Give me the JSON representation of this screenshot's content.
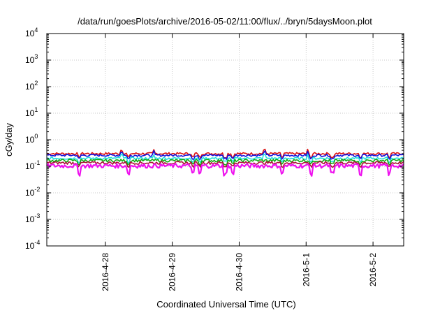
{
  "chart_data": {
    "type": "line",
    "title": "/data/run/goesPlots/archive/2016-05-02/11:00/flux/../bryn/5daysMoon.plot",
    "xlabel": "Coordinated Universal Time (UTC)",
    "ylabel": "cGy/day",
    "y_scale": "log",
    "ylim": [
      0.0001,
      10000
    ],
    "xlim": [
      "2016-04-27T03:00",
      "2016-05-02T11:00"
    ],
    "grid": true,
    "y_ticks": [
      {
        "base": "10",
        "exp": "4",
        "value": 10000
      },
      {
        "base": "10",
        "exp": "3",
        "value": 1000
      },
      {
        "base": "10",
        "exp": "2",
        "value": 100
      },
      {
        "base": "10",
        "exp": "1",
        "value": 10
      },
      {
        "base": "10",
        "exp": "0",
        "value": 1
      },
      {
        "base": "10",
        "exp": "-1",
        "value": 0.1
      },
      {
        "base": "10",
        "exp": "-2",
        "value": 0.01
      },
      {
        "base": "10",
        "exp": "-3",
        "value": 0.001
      },
      {
        "base": "10",
        "exp": "-4",
        "value": 0.0001
      }
    ],
    "x_ticks": [
      {
        "label": "2016-4-28",
        "value": "2016-04-28T00:00"
      },
      {
        "label": "2016-4-29",
        "value": "2016-04-29T00:00"
      },
      {
        "label": "2016-4-30",
        "value": "2016-04-30T00:00"
      },
      {
        "label": "2016-5-1",
        "value": "2016-05-01T00:00"
      },
      {
        "label": "2016-5-2",
        "value": "2016-05-02T00:00"
      }
    ],
    "series": [
      {
        "color": "#dd1111",
        "base": 0.3,
        "spread": 0.1
      },
      {
        "color": "#1111dd",
        "base": 0.26,
        "spread": 0.1
      },
      {
        "color": "#22dddd",
        "base": 0.2,
        "spread": 0.1
      },
      {
        "color": "#11aa11",
        "base": 0.165,
        "spread": 0.12
      },
      {
        "color": "#aa1133",
        "base": 0.135,
        "spread": 0.12
      },
      {
        "color": "#ee11ee",
        "base": 0.105,
        "spread": 0.18
      }
    ]
  }
}
